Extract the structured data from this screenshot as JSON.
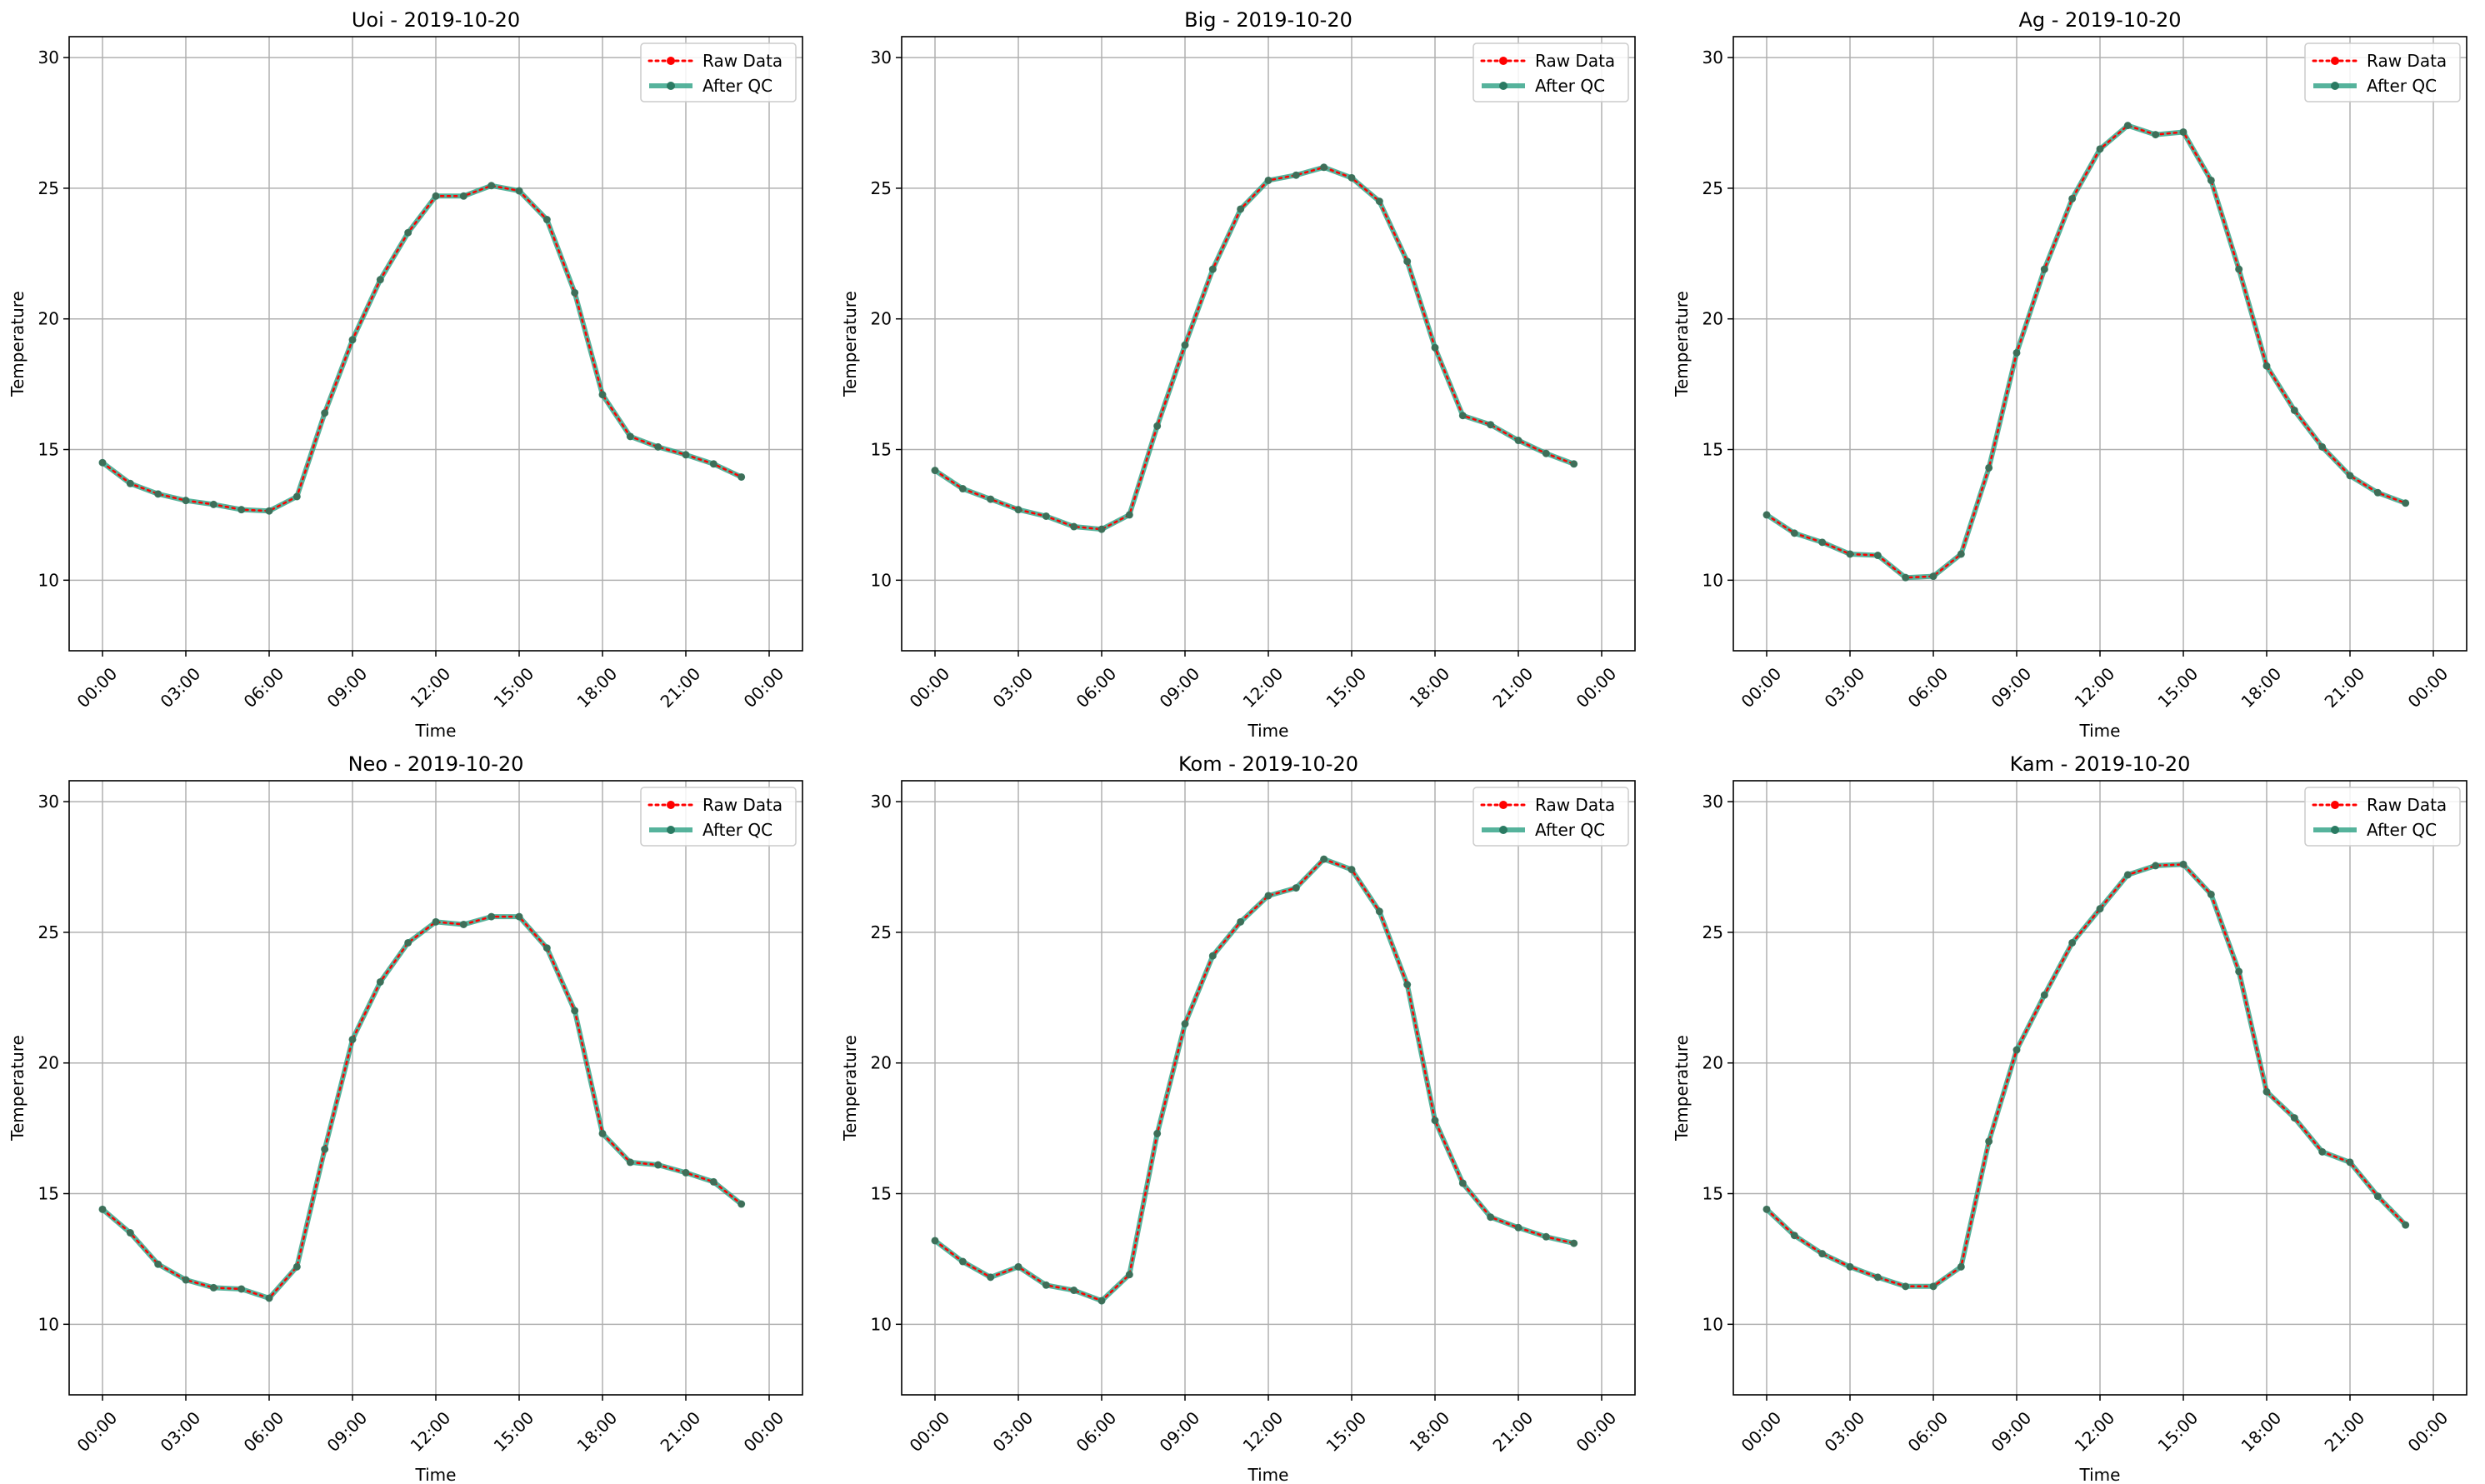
{
  "chart_data": [
    {
      "type": "line",
      "title": "Uoi - 2019-10-20",
      "xlabel": "Time",
      "ylabel": "Temperature",
      "xticks": [
        "00:00",
        "03:00",
        "06:00",
        "09:00",
        "12:00",
        "15:00",
        "18:00",
        "21:00",
        "00:00"
      ],
      "ylim": [
        7.3,
        30.8
      ],
      "yticks": [
        "10",
        "15",
        "20",
        "25",
        "30"
      ],
      "grid": true,
      "legend": "top-right",
      "x": [
        "00:00",
        "01:00",
        "02:00",
        "03:00",
        "04:00",
        "05:00",
        "06:00",
        "07:00",
        "08:00",
        "09:00",
        "10:00",
        "11:00",
        "12:00",
        "13:00",
        "14:00",
        "15:00",
        "16:00",
        "17:00",
        "18:00",
        "19:00",
        "20:00",
        "21:00",
        "22:00",
        "23:00"
      ],
      "series": [
        {
          "name": "Raw Data",
          "color": "#ff0000",
          "values": [
            14.5,
            13.7,
            13.3,
            13.05,
            12.9,
            12.7,
            12.65,
            13.2,
            16.4,
            19.2,
            21.5,
            23.3,
            24.7,
            24.7,
            25.1,
            24.9,
            23.8,
            21.0,
            17.1,
            15.5,
            15.1,
            14.8,
            14.45,
            13.95
          ]
        },
        {
          "name": "After QC",
          "color": "#2ca083",
          "values": [
            14.5,
            13.7,
            13.3,
            13.05,
            12.9,
            12.7,
            12.65,
            13.2,
            16.4,
            19.2,
            21.5,
            23.3,
            24.7,
            24.7,
            25.1,
            24.9,
            23.8,
            21.0,
            17.1,
            15.5,
            15.1,
            14.8,
            14.45,
            13.95
          ]
        }
      ]
    },
    {
      "type": "line",
      "title": "Big - 2019-10-20",
      "xlabel": "Time",
      "ylabel": "Temperature",
      "xticks": [
        "00:00",
        "03:00",
        "06:00",
        "09:00",
        "12:00",
        "15:00",
        "18:00",
        "21:00",
        "00:00"
      ],
      "ylim": [
        7.3,
        30.8
      ],
      "yticks": [
        "10",
        "15",
        "20",
        "25",
        "30"
      ],
      "grid": true,
      "legend": "top-right",
      "x": [
        "00:00",
        "01:00",
        "02:00",
        "03:00",
        "04:00",
        "05:00",
        "06:00",
        "07:00",
        "08:00",
        "09:00",
        "10:00",
        "11:00",
        "12:00",
        "13:00",
        "14:00",
        "15:00",
        "16:00",
        "17:00",
        "18:00",
        "19:00",
        "20:00",
        "21:00",
        "22:00",
        "23:00"
      ],
      "series": [
        {
          "name": "Raw Data",
          "color": "#ff0000",
          "values": [
            14.2,
            13.5,
            13.1,
            12.7,
            12.45,
            12.05,
            11.95,
            12.5,
            15.9,
            19.0,
            21.9,
            24.2,
            25.3,
            25.5,
            25.8,
            25.4,
            24.5,
            22.2,
            18.9,
            16.3,
            15.95,
            15.35,
            14.85,
            14.45
          ]
        },
        {
          "name": "After QC",
          "color": "#2ca083",
          "values": [
            14.2,
            13.5,
            13.1,
            12.7,
            12.45,
            12.05,
            11.95,
            12.5,
            15.9,
            19.0,
            21.9,
            24.2,
            25.3,
            25.5,
            25.8,
            25.4,
            24.5,
            22.2,
            18.9,
            16.3,
            15.95,
            15.35,
            14.85,
            14.45
          ]
        }
      ]
    },
    {
      "type": "line",
      "title": "Ag - 2019-10-20",
      "xlabel": "Time",
      "ylabel": "Temperature",
      "xticks": [
        "00:00",
        "03:00",
        "06:00",
        "09:00",
        "12:00",
        "15:00",
        "18:00",
        "21:00",
        "00:00"
      ],
      "ylim": [
        7.3,
        30.8
      ],
      "yticks": [
        "10",
        "15",
        "20",
        "25",
        "30"
      ],
      "grid": true,
      "legend": "top-right",
      "x": [
        "00:00",
        "01:00",
        "02:00",
        "03:00",
        "04:00",
        "05:00",
        "06:00",
        "07:00",
        "08:00",
        "09:00",
        "10:00",
        "11:00",
        "12:00",
        "13:00",
        "14:00",
        "15:00",
        "16:00",
        "17:00",
        "18:00",
        "19:00",
        "20:00",
        "21:00",
        "22:00",
        "23:00"
      ],
      "series": [
        {
          "name": "Raw Data",
          "color": "#ff0000",
          "values": [
            12.5,
            11.8,
            11.45,
            11.0,
            10.95,
            10.1,
            10.15,
            11.0,
            14.3,
            18.7,
            21.9,
            24.6,
            26.5,
            27.4,
            27.05,
            27.15,
            25.3,
            21.9,
            18.2,
            16.5,
            15.1,
            14.0,
            13.35,
            12.95
          ]
        },
        {
          "name": "After QC",
          "color": "#2ca083",
          "values": [
            12.5,
            11.8,
            11.45,
            11.0,
            10.95,
            10.1,
            10.15,
            11.0,
            14.3,
            18.7,
            21.9,
            24.6,
            26.5,
            27.4,
            27.05,
            27.15,
            25.3,
            21.9,
            18.2,
            16.5,
            15.1,
            14.0,
            13.35,
            12.95
          ]
        }
      ]
    },
    {
      "type": "line",
      "title": "Neo - 2019-10-20",
      "xlabel": "Time",
      "ylabel": "Temperature",
      "xticks": [
        "00:00",
        "03:00",
        "06:00",
        "09:00",
        "12:00",
        "15:00",
        "18:00",
        "21:00",
        "00:00"
      ],
      "ylim": [
        7.3,
        30.8
      ],
      "yticks": [
        "10",
        "15",
        "20",
        "25",
        "30"
      ],
      "grid": true,
      "legend": "top-right",
      "x": [
        "00:00",
        "01:00",
        "02:00",
        "03:00",
        "04:00",
        "05:00",
        "06:00",
        "07:00",
        "08:00",
        "09:00",
        "10:00",
        "11:00",
        "12:00",
        "13:00",
        "14:00",
        "15:00",
        "16:00",
        "17:00",
        "18:00",
        "19:00",
        "20:00",
        "21:00",
        "22:00",
        "23:00"
      ],
      "series": [
        {
          "name": "Raw Data",
          "color": "#ff0000",
          "values": [
            14.4,
            13.5,
            12.3,
            11.7,
            11.4,
            11.35,
            11.0,
            12.2,
            16.7,
            20.9,
            23.1,
            24.6,
            25.4,
            25.3,
            25.6,
            25.6,
            24.4,
            22.0,
            17.3,
            16.2,
            16.1,
            15.8,
            15.45,
            14.6
          ]
        },
        {
          "name": "After QC",
          "color": "#2ca083",
          "values": [
            14.4,
            13.5,
            12.3,
            11.7,
            11.4,
            11.35,
            11.0,
            12.2,
            16.7,
            20.9,
            23.1,
            24.6,
            25.4,
            25.3,
            25.6,
            25.6,
            24.4,
            22.0,
            17.3,
            16.2,
            16.1,
            15.8,
            15.45,
            14.6
          ]
        }
      ]
    },
    {
      "type": "line",
      "title": "Kom - 2019-10-20",
      "xlabel": "Time",
      "ylabel": "Temperature",
      "xticks": [
        "00:00",
        "03:00",
        "06:00",
        "09:00",
        "12:00",
        "15:00",
        "18:00",
        "21:00",
        "00:00"
      ],
      "ylim": [
        7.3,
        30.8
      ],
      "yticks": [
        "10",
        "15",
        "20",
        "25",
        "30"
      ],
      "grid": true,
      "legend": "top-right",
      "x": [
        "00:00",
        "01:00",
        "02:00",
        "03:00",
        "04:00",
        "05:00",
        "06:00",
        "07:00",
        "08:00",
        "09:00",
        "10:00",
        "11:00",
        "12:00",
        "13:00",
        "14:00",
        "15:00",
        "16:00",
        "17:00",
        "18:00",
        "19:00",
        "20:00",
        "21:00",
        "22:00",
        "23:00"
      ],
      "series": [
        {
          "name": "Raw Data",
          "color": "#ff0000",
          "values": [
            13.2,
            12.4,
            11.8,
            12.2,
            11.5,
            11.3,
            10.9,
            11.9,
            17.3,
            21.5,
            24.1,
            25.4,
            26.4,
            26.7,
            27.8,
            27.4,
            25.8,
            23.0,
            17.8,
            15.4,
            14.1,
            13.7,
            13.35,
            13.1
          ]
        },
        {
          "name": "After QC",
          "color": "#2ca083",
          "values": [
            13.2,
            12.4,
            11.8,
            12.2,
            11.5,
            11.3,
            10.9,
            11.9,
            17.3,
            21.5,
            24.1,
            25.4,
            26.4,
            26.7,
            27.8,
            27.4,
            25.8,
            23.0,
            17.8,
            15.4,
            14.1,
            13.7,
            13.35,
            13.1
          ]
        }
      ]
    },
    {
      "type": "line",
      "title": "Kam - 2019-10-20",
      "xlabel": "Time",
      "ylabel": "Temperature",
      "xticks": [
        "00:00",
        "03:00",
        "06:00",
        "09:00",
        "12:00",
        "15:00",
        "18:00",
        "21:00",
        "00:00"
      ],
      "ylim": [
        7.3,
        30.8
      ],
      "yticks": [
        "10",
        "15",
        "20",
        "25",
        "30"
      ],
      "grid": true,
      "legend": "top-right",
      "x": [
        "00:00",
        "01:00",
        "02:00",
        "03:00",
        "04:00",
        "05:00",
        "06:00",
        "07:00",
        "08:00",
        "09:00",
        "10:00",
        "11:00",
        "12:00",
        "13:00",
        "14:00",
        "15:00",
        "16:00",
        "17:00",
        "18:00",
        "19:00",
        "20:00",
        "21:00",
        "22:00",
        "23:00"
      ],
      "series": [
        {
          "name": "Raw Data",
          "color": "#ff0000",
          "values": [
            14.4,
            13.4,
            12.7,
            12.2,
            11.8,
            11.45,
            11.45,
            12.2,
            17.0,
            20.5,
            22.6,
            24.6,
            25.9,
            27.2,
            27.55,
            27.6,
            26.45,
            23.5,
            18.9,
            17.9,
            16.6,
            16.2,
            14.9,
            13.8
          ]
        },
        {
          "name": "After QC",
          "color": "#2ca083",
          "values": [
            14.4,
            13.4,
            12.7,
            12.2,
            11.8,
            11.45,
            11.45,
            12.2,
            17.0,
            20.5,
            22.6,
            24.6,
            25.9,
            27.2,
            27.55,
            27.6,
            26.45,
            23.5,
            18.9,
            17.9,
            16.6,
            16.2,
            14.9,
            13.8
          ]
        }
      ]
    }
  ]
}
